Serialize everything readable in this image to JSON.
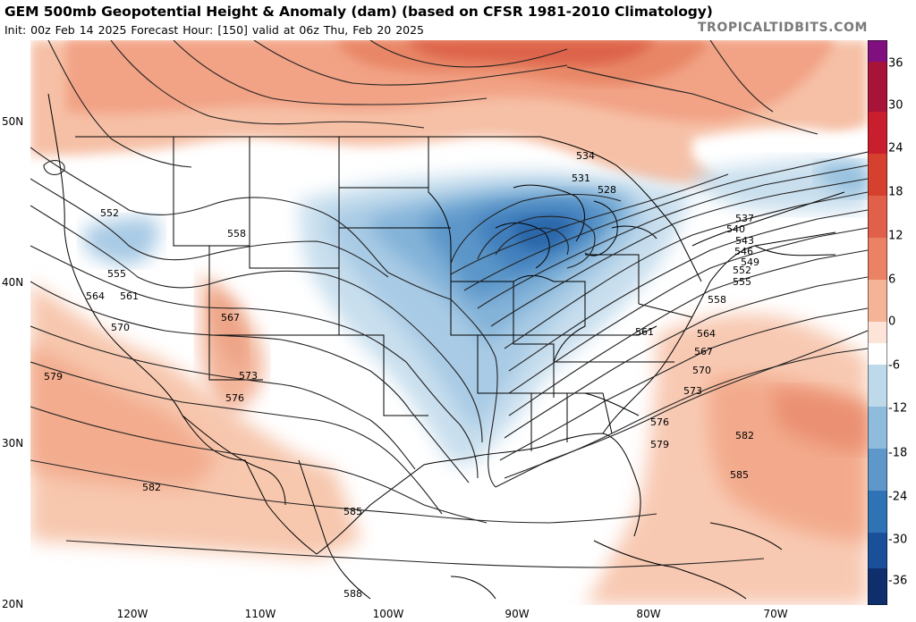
{
  "header": {
    "title": "GEM 500mb Geopotential Height & Anomaly (dam) (based on CFSR 1981-2010 Climatology)",
    "subtitle": "Init: 00z Feb 14 2025   Forecast Hour: [150]   valid at 06z Thu, Feb 20 2025",
    "credit": "TROPICALTIDBITS.COM"
  },
  "axes": {
    "lat_labels": [
      "50N",
      "40N",
      "30N",
      "20N"
    ],
    "lon_labels": [
      "120W",
      "110W",
      "100W",
      "90W",
      "80W",
      "70W"
    ]
  },
  "colorbar": {
    "labels": [
      "36",
      "30",
      "24",
      "18",
      "12",
      "6",
      "0",
      "-6",
      "-12",
      "-18",
      "-24",
      "-30",
      "-36"
    ],
    "colors": [
      "#b01a5a",
      "#c81e2d",
      "#d6402f",
      "#e0604a",
      "#eb8263",
      "#f3a488",
      "#f8c9b2",
      "#ffffff",
      "#bed9ea",
      "#95c0de",
      "#6ba4d0",
      "#4488c2",
      "#2a6db0",
      "#1a509a",
      "#123a7c"
    ]
  },
  "contour_labels": [
    "552",
    "555",
    "561",
    "564",
    "558",
    "567",
    "570",
    "573",
    "576",
    "579",
    "582",
    "585",
    "588",
    "531",
    "528",
    "534",
    "537",
    "540",
    "543",
    "546",
    "549",
    "552",
    "555",
    "558",
    "561",
    "564",
    "567",
    "570",
    "573",
    "576",
    "579",
    "582",
    "585"
  ]
}
